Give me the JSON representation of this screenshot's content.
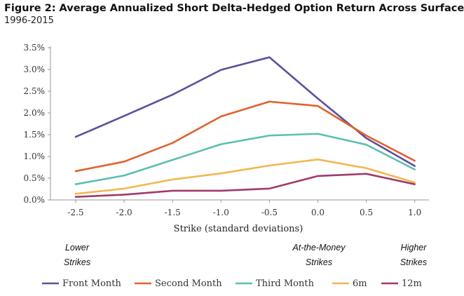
{
  "header": {
    "title": "Figure 2: Average Annualized Short Delta-Hedged Option Return Across Surface",
    "subtitle": "1996-2015"
  },
  "chart_data": {
    "type": "line",
    "title": "Figure 2: Average Annualized Short Delta-Hedged Option Return Across Surface",
    "subtitle": "1996-2015",
    "xlabel": "Strike (standard deviations)",
    "ylabel": "",
    "categories": [
      "-2.5",
      "-2.0",
      "-1.5",
      "-1.0",
      "-0.5",
      "0.0",
      "0.5",
      "1.0"
    ],
    "ylim": [
      0,
      3.5
    ],
    "yticks": [
      "0.0%",
      "0.5%",
      "1.0%",
      "1.5%",
      "2.0%",
      "2.5%",
      "3.0%",
      "3.5%"
    ],
    "grid": false,
    "legend_position": "bottom",
    "series": [
      {
        "name": "Front Month",
        "color": "#5b4f9e",
        "values": [
          1.45,
          1.93,
          2.42,
          2.99,
          3.28,
          2.33,
          1.42,
          0.78
        ]
      },
      {
        "name": "Second Month",
        "color": "#e0622d",
        "values": [
          0.66,
          0.88,
          1.31,
          1.92,
          2.26,
          2.16,
          1.48,
          0.9
        ]
      },
      {
        "name": "Third Month",
        "color": "#5bbfae",
        "values": [
          0.36,
          0.56,
          0.92,
          1.28,
          1.48,
          1.52,
          1.27,
          0.7
        ]
      },
      {
        "name": "6m",
        "color": "#f2b74f",
        "values": [
          0.14,
          0.26,
          0.47,
          0.61,
          0.79,
          0.93,
          0.73,
          0.4
        ]
      },
      {
        "name": "12m",
        "color": "#a13a6a",
        "values": [
          0.07,
          0.12,
          0.21,
          0.21,
          0.26,
          0.55,
          0.6,
          0.36
        ]
      }
    ],
    "annotations": [
      {
        "line1": "Lower",
        "line2": "Strikes",
        "anchor": "-2.5"
      },
      {
        "line1": "At-the-Money",
        "line2": "Strikes",
        "anchor": "0.0"
      },
      {
        "line1": "Higher",
        "line2": "Strikes",
        "anchor": "1.0"
      }
    ]
  }
}
